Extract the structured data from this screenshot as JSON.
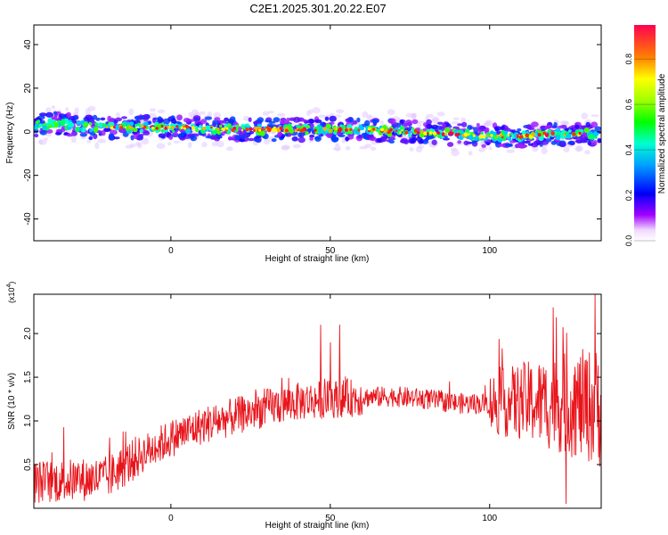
{
  "title": "C2E1.2025.301.20.22.E07",
  "chart_data": [
    {
      "type": "heatmap",
      "xlabel": "Height of straight line (km)",
      "ylabel": "Frequency (Hz)",
      "xlim": [
        -43,
        135
      ],
      "ylim": [
        -50,
        49
      ],
      "xticks": [
        0,
        50,
        100
      ],
      "yticks": [
        -40,
        -20,
        0,
        20,
        40
      ],
      "ridge": {
        "x": [
          -43,
          -35,
          -25,
          -15,
          0,
          20,
          40,
          60,
          75,
          90,
          100,
          110,
          120,
          135
        ],
        "y": [
          3,
          4,
          2,
          2,
          2,
          1,
          1,
          1,
          0,
          -1,
          -2,
          -2,
          -1,
          -1
        ]
      },
      "colorbar": {
        "label": "Normalized spectral amplitude",
        "range": [
          0,
          0.95
        ],
        "ticks": [
          0.0,
          0.2,
          0.4,
          0.6,
          0.8
        ],
        "tick_labels": [
          "0.0",
          "0.2",
          "0.4",
          "0.6",
          "0.8"
        ]
      }
    },
    {
      "type": "line",
      "xlabel": "Height of straight line (km)",
      "ylabel": "SNR (10 * v/v)",
      "y_multiplier_label": "(x10",
      "y_multiplier_exp": "4",
      "xlim": [
        -43,
        135
      ],
      "ylim": [
        0,
        2.45
      ],
      "xticks": [
        0,
        50,
        100
      ],
      "yticks": [
        0.5,
        1.0,
        1.5,
        2.0
      ],
      "ytick_labels": [
        "0.5",
        "1.0",
        "1.5",
        "2.0"
      ],
      "color": "#e8141b",
      "trend": {
        "x": [
          -43,
          -30,
          -20,
          -10,
          0,
          10,
          20,
          30,
          40,
          50,
          60,
          70,
          80,
          90,
          100,
          110,
          120,
          130,
          135
        ],
        "y": [
          0.3,
          0.32,
          0.35,
          0.6,
          0.8,
          0.95,
          1.05,
          1.15,
          1.22,
          1.25,
          1.27,
          1.28,
          1.25,
          1.2,
          1.2,
          1.22,
          1.2,
          1.18,
          1.15
        ]
      },
      "spikes": [
        {
          "x": 47,
          "y": 2.1
        },
        {
          "x": 50,
          "y": 1.9
        },
        {
          "x": 53,
          "y": 2.1
        },
        {
          "x": 120,
          "y": 2.3
        },
        {
          "x": 124,
          "y": 0.05
        },
        {
          "x": 133,
          "y": 2.45
        }
      ]
    }
  ]
}
